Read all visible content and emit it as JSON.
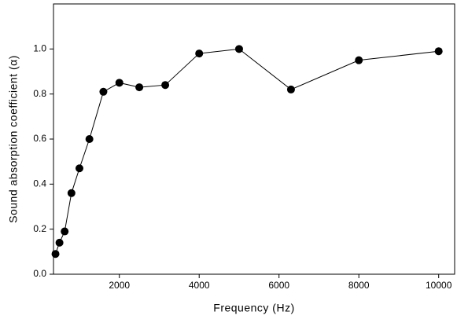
{
  "chart_data": {
    "type": "line",
    "x_label": "Frequency (Hz)",
    "y_label": "Sound absorption coefficient (α)",
    "x": [
      400,
      500,
      630,
      800,
      1000,
      1250,
      1600,
      2000,
      2500,
      3150,
      4000,
      5000,
      6300,
      8000,
      10000
    ],
    "series": [
      {
        "name": "Sound absorption coefficient",
        "color": "#000000",
        "values": [
          0.09,
          0.14,
          0.19,
          0.36,
          0.47,
          0.6,
          0.81,
          0.85,
          0.83,
          0.84,
          0.98,
          1.0,
          0.82,
          0.95,
          0.99
        ]
      }
    ],
    "xlim": [
      350,
      10400
    ],
    "xticks": [
      2000,
      4000,
      6000,
      8000,
      10000
    ],
    "ylim": [
      0,
      1.2
    ],
    "yticks": [
      {
        "value": 0,
        "label": "0.0"
      },
      {
        "value": 0.2,
        "label": "0.2"
      },
      {
        "value": 0.4,
        "label": "0.4"
      },
      {
        "value": 0.6,
        "label": "0.6"
      },
      {
        "value": 0.8,
        "label": "0.8"
      },
      {
        "value": 1.0,
        "label": "1.0"
      }
    ]
  }
}
